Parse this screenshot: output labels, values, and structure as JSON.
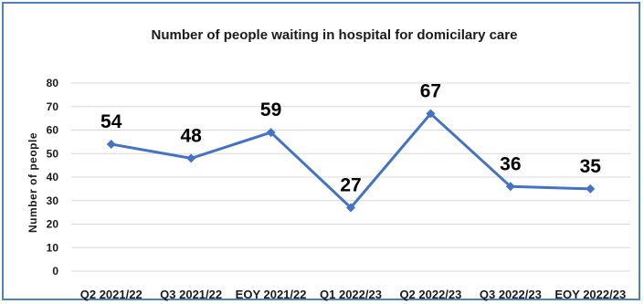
{
  "chart_data": {
    "type": "line",
    "title": "Number of people waiting in hospital for domicilary care",
    "ylabel": "Number of people",
    "xlabel": "",
    "categories": [
      "Q2 2021/22",
      "Q3 2021/22",
      "EOY 2021/22",
      "Q1 2022/23",
      "Q2 2022/23",
      "Q3 2022/23",
      "EOY 2022/23"
    ],
    "values": [
      54,
      48,
      59,
      27,
      67,
      36,
      35
    ],
    "data_labels": [
      "54",
      "48",
      "59",
      "27",
      "67",
      "36",
      "35"
    ],
    "ylim": [
      0,
      80
    ],
    "yticks": [
      "0",
      "10",
      "20",
      "30",
      "40",
      "50",
      "60",
      "70",
      "80"
    ],
    "grid": true,
    "legend": "none",
    "line_color": "#4472c4",
    "frame_color": "#4f81bd"
  }
}
